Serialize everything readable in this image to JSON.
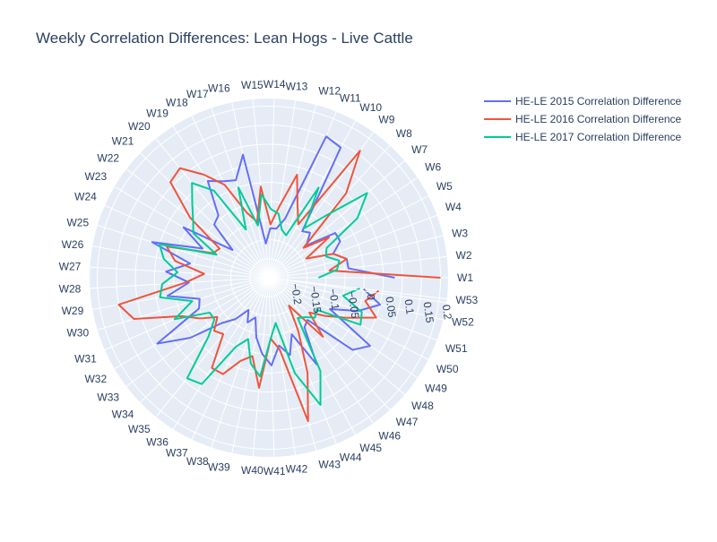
{
  "chart_data": {
    "type": "line",
    "subtype": "polar",
    "title": "Weekly Correlation Differences: Lean Hogs - Live Cattle",
    "radial_axis": {
      "range": [
        -0.25,
        0.22
      ],
      "tick_values": [
        -0.2,
        -0.15,
        -0.1,
        -0.05,
        0,
        0.05,
        0.1,
        0.15,
        0.2
      ],
      "tick_labels": [
        "−0.2",
        "−0.15",
        "−0.1",
        "−0.05",
        "0",
        "0.05",
        "0.1",
        "0.15",
        "0.2"
      ]
    },
    "angular_axis": {
      "direction": "counterclockwise",
      "rotation": 0,
      "categories": [
        "W1",
        "W2",
        "W3",
        "W4",
        "W5",
        "W6",
        "W7",
        "W8",
        "W9",
        "W10",
        "W11",
        "W12",
        "W13",
        "W14",
        "W15",
        "W16",
        "W17",
        "W18",
        "W19",
        "W20",
        "W21",
        "W22",
        "W23",
        "W24",
        "W25",
        "W26",
        "W27",
        "W28",
        "W29",
        "W30",
        "W31",
        "W32",
        "W33",
        "W34",
        "W35",
        "W36",
        "W37",
        "W38",
        "W39",
        "W40",
        "W41",
        "W42",
        "W43",
        "W44",
        "W45",
        "W46",
        "W47",
        "W48",
        "W49",
        "W50",
        "W51",
        "W52",
        "W53"
      ]
    },
    "series": [
      {
        "name": "HE-LE 2015 Correlation Difference",
        "color": "#636efa",
        "values": [
          0.08,
          -0.04,
          -0.04,
          -0.07,
          -0.04,
          -0.04,
          -0.12,
          -0.09,
          -0.1,
          0.14,
          0.15,
          -0.09,
          -0.12,
          -0.12,
          -0.16,
          0.08,
          0.02,
          0.03,
          0.05,
          -0.04,
          -0.05,
          -0.13,
          0.01,
          -0.06,
          0.07,
          -0.04,
          0.02,
          -0.04,
          0.02,
          -0.06,
          -0.05,
          0.09,
          0.01,
          -0.08,
          -0.11,
          -0.15,
          -0.12,
          -0.14,
          -0.09,
          -0.05,
          -0.02,
          -0.07,
          -0.04,
          -0.09,
          0.01,
          -0.09,
          -0.1,
          0.04,
          0.07,
          -0.07,
          0.0,
          0.05,
          0.0
        ]
      },
      {
        "name": "HE-LE 2016 Correlation Difference",
        "color": "#ef553b",
        "values": [
          0.2,
          -0.09,
          -0.04,
          -0.07,
          -0.14,
          -0.06,
          -0.13,
          0.05,
          0.16,
          -0.09,
          -0.05,
          0.03,
          -0.06,
          -0.11,
          -0.01,
          -0.1,
          -0.07,
          0.02,
          0.07,
          0.12,
          0.11,
          0.01,
          -0.1,
          -0.09,
          0.03,
          0.0,
          -0.08,
          -0.03,
          0.15,
          0.12,
          0.0,
          -0.04,
          -0.08,
          -0.05,
          -0.06,
          0.03,
          0.03,
          -0.02,
          -0.04,
          0.04,
          -0.09,
          -0.06,
          0.14,
          0.02,
          -0.09,
          -0.16,
          -0.04,
          -0.11,
          -0.07,
          -0.02,
          0.05,
          0.01,
          0.04
        ]
      },
      {
        "name": "HE-LE 2017 Correlation Difference",
        "color": "#00cc96",
        "values": [
          -0.12,
          -0.07,
          -0.06,
          -0.09,
          -0.08,
          0.03,
          0.09,
          -0.03,
          -0.09,
          0.02,
          -0.13,
          -0.12,
          -0.08,
          -0.07,
          -0.03,
          -0.11,
          0.0,
          -0.11,
          0.02,
          0.07,
          0.03,
          0.0,
          -0.02,
          -0.1,
          0.05,
          0.03,
          -0.01,
          0.03,
          0.04,
          -0.04,
          0.02,
          -0.07,
          -0.07,
          -0.03,
          0.09,
          0.08,
          -0.05,
          -0.08,
          -0.02,
          0.01,
          -0.09,
          -0.13,
          0.01,
          0.11,
          0.03,
          -0.12,
          -0.11,
          -0.09,
          -0.1,
          0.02,
          0.01,
          -0.05,
          -0.01
        ]
      }
    ],
    "legend_position": "top-right",
    "grid": true
  }
}
